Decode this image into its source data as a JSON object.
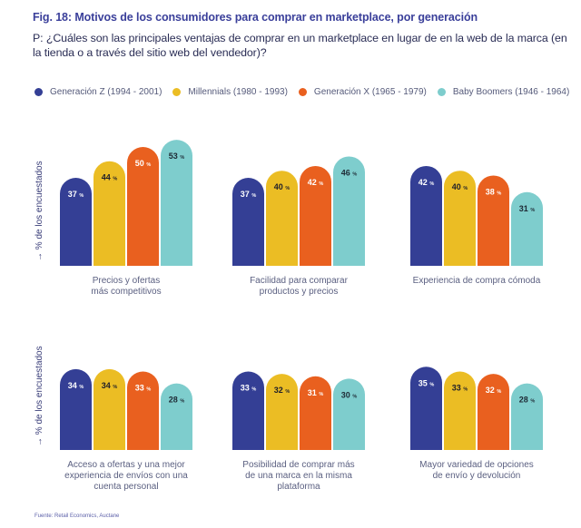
{
  "title": "Fig. 18: Motivos de los consumidores para comprar en marketplace, por generación",
  "question": "P: ¿Cuáles son las principales ventajas de comprar en un marketplace en lugar de en la web de la marca (en la tienda o a través del sitio web del vendedor)?",
  "source": "Fuente: Retail Economics, Auctane",
  "colors": {
    "gen_z": "#343f95",
    "millennials": "#ebbd24",
    "gen_x": "#e9601f",
    "boomers": "#7ecdcd",
    "title": "#3a3f9a"
  },
  "chart_data": {
    "type": "bar",
    "title": "Fig. 18: Motivos de los consumidores para comprar en marketplace, por generación",
    "ylabel": "% de los encuestados",
    "xlabel": "",
    "ylim": [
      0,
      60
    ],
    "grid": false,
    "legend_position": "top",
    "unit": "%",
    "series": [
      {
        "name": "Generación Z (1994 - 2001)",
        "color": "#343f95",
        "label_color": "#ffffff",
        "values": [
          37,
          37,
          42,
          34,
          33,
          35
        ]
      },
      {
        "name": "Millennials (1980 - 1993)",
        "color": "#ebbd24",
        "label_color": "#1e1e2a",
        "values": [
          44,
          40,
          40,
          34,
          32,
          33
        ]
      },
      {
        "name": "Generación X (1965 - 1979)",
        "color": "#e9601f",
        "label_color": "#ffffff",
        "values": [
          50,
          42,
          38,
          33,
          31,
          32
        ]
      },
      {
        "name": "Baby Boomers (1946 - 1964)",
        "color": "#7ecdcd",
        "label_color": "#1e2a35",
        "values": [
          53,
          46,
          31,
          28,
          30,
          28
        ]
      }
    ],
    "categories": [
      [
        "Precios y ofertas",
        "más competitivos"
      ],
      [
        "Facilidad para comparar",
        "productos y precios"
      ],
      [
        "Experiencia de compra cómoda"
      ],
      [
        "Acceso a ofertas y una mejor",
        "experiencia de envíos con una",
        "cuenta personal"
      ],
      [
        "Posibilidad de comprar más",
        "de una marca en la misma",
        "plataforma"
      ],
      [
        "Mayor variedad de opciones",
        "de envío y devolución"
      ]
    ]
  }
}
